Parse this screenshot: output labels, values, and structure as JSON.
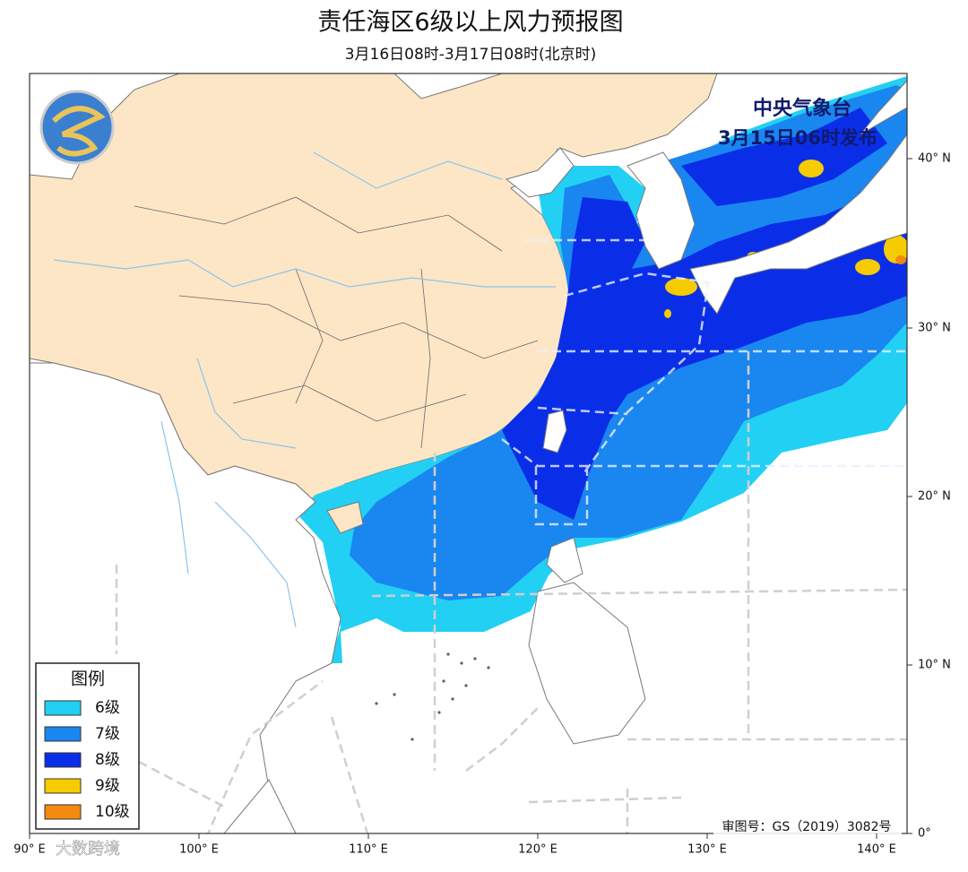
{
  "title": "责任海区6级以上风力预报图",
  "subtitle": "3月16日08时-3月17日08时(北京时)",
  "issuer": "中央气象台",
  "issued": "3月15日06时发布",
  "legend": {
    "title": "图例",
    "items": [
      {
        "label": "6级",
        "color": "#22d0f4"
      },
      {
        "label": "7级",
        "color": "#1a86f0"
      },
      {
        "label": "8级",
        "color": "#0a2ee8"
      },
      {
        "label": "9级",
        "color": "#f6cb00"
      },
      {
        "label": "10级",
        "color": "#f28a10"
      }
    ]
  },
  "lat_labels": [
    "40° N",
    "30° N",
    "20° N",
    "10° N",
    "0°"
  ],
  "lon_labels": [
    "90° E",
    "100° E",
    "110° E",
    "120° E",
    "130° E",
    "140° E"
  ],
  "approval": "审图号：GS（2019）3082号",
  "watermark": "大数跨境"
}
